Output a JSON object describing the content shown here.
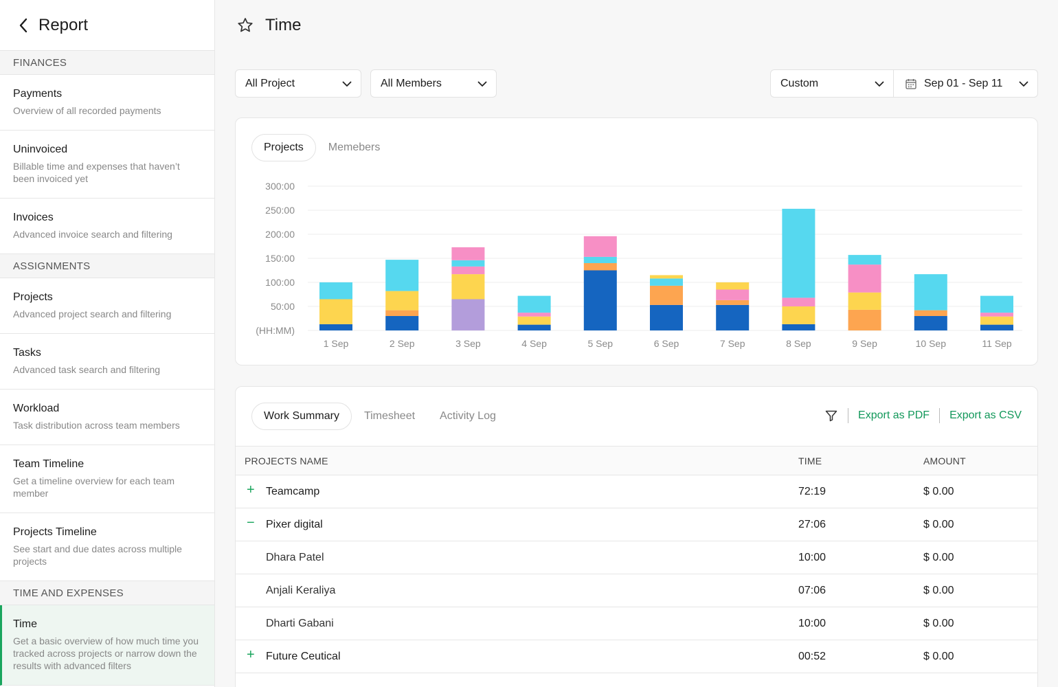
{
  "sidebar": {
    "title": "Report",
    "sections": {
      "finances": "FINANCES",
      "assignments": "ASSIGNMENTS",
      "time_expenses": "TIME AND EXPENSES"
    },
    "items": [
      {
        "name": "Payments",
        "desc": "Overview of all recorded payments"
      },
      {
        "name": "Uninvoiced",
        "desc": "Billable time and expenses that haven’t been invoiced yet"
      },
      {
        "name": "Invoices",
        "desc": "Advanced invoice search and filtering"
      },
      {
        "name": "Projects",
        "desc": "Advanced project search and filtering"
      },
      {
        "name": "Tasks",
        "desc": "Advanced task search and filtering"
      },
      {
        "name": "Workload",
        "desc": "Task distribution across team members"
      },
      {
        "name": "Team Timeline",
        "desc": "Get a timeline overview for each team member"
      },
      {
        "name": "Projects Timeline",
        "desc": "See start and due dates across multiple projects"
      },
      {
        "name": "Time",
        "desc": "Get a basic overview of how much time you tracked across projects or narrow down the results with advanced filters"
      }
    ]
  },
  "header": {
    "title": "Time"
  },
  "filters": {
    "project": "All Project",
    "members": "All Members",
    "range": "Custom",
    "dates": "Sep 01 - Sep 11"
  },
  "chart_tabs": {
    "projects": "Projects",
    "members": "Memebers"
  },
  "chart_data": {
    "type": "bar",
    "stacked": true,
    "categories": [
      "1 Sep",
      "2 Sep",
      "3 Sep",
      "4 Sep",
      "5 Sep",
      "6 Sep",
      "7 Sep",
      "8 Sep",
      "9 Sep",
      "10 Sep",
      "11 Sep"
    ],
    "ylabel": "(HH:MM)",
    "yticks": [
      "(HH:MM)",
      "50:00",
      "100:00",
      "150:00",
      "200:00",
      "250:00",
      "300:00"
    ],
    "ylim": [
      0,
      300
    ],
    "grid": true,
    "series": [
      {
        "color": "#1565c0",
        "values": [
          13,
          30,
          0,
          12,
          125,
          53,
          53,
          13,
          0,
          30,
          12
        ]
      },
      {
        "color": "#b39ddb",
        "values": [
          0,
          0,
          65,
          0,
          0,
          0,
          0,
          0,
          0,
          0,
          0
        ]
      },
      {
        "color": "#fda550",
        "values": [
          0,
          12,
          0,
          0,
          15,
          40,
          10,
          0,
          43,
          12,
          0
        ]
      },
      {
        "color": "#fdd54f",
        "values": [
          52,
          40,
          52,
          17,
          0,
          0,
          0,
          37,
          36,
          0,
          17
        ]
      },
      {
        "color": "#f78fc5",
        "values": [
          0,
          0,
          16,
          8,
          0,
          0,
          22,
          18,
          58,
          0,
          8
        ]
      },
      {
        "color": "#56d8ef",
        "values": [
          35,
          65,
          13,
          35,
          13,
          15,
          0,
          185,
          20,
          75,
          35
        ]
      },
      {
        "color": "#fdd54f",
        "values": [
          0,
          0,
          0,
          0,
          0,
          7,
          15,
          0,
          0,
          0,
          0
        ]
      },
      {
        "color": "#f78fc5",
        "values": [
          0,
          0,
          27,
          0,
          43,
          0,
          0,
          0,
          0,
          0,
          0
        ]
      }
    ]
  },
  "table_tabs": {
    "summary": "Work Summary",
    "timesheet": "Timesheet",
    "activity": "Activity Log"
  },
  "exports": {
    "pdf": "Export as PDF",
    "csv": "Export as CSV"
  },
  "table": {
    "headers": {
      "name": "PROJECTS NAME",
      "time": "TIME",
      "amount": "AMOUNT"
    },
    "rows": [
      {
        "toggle": "+",
        "name": "Teamcamp",
        "time": "72:19",
        "amount": "$ 0.00"
      },
      {
        "toggle": "−",
        "name": "Pixer digital",
        "time": "27:06",
        "amount": "$ 0.00"
      },
      {
        "toggle": "",
        "name": "Dhara Patel",
        "time": "10:00",
        "amount": "$ 0.00"
      },
      {
        "toggle": "",
        "name": "Anjali Keraliya",
        "time": "07:06",
        "amount": "$ 0.00"
      },
      {
        "toggle": "",
        "name": "Dharti Gabani",
        "time": "10:00",
        "amount": "$ 0.00"
      },
      {
        "toggle": "+",
        "name": "Future Ceutical",
        "time": "00:52",
        "amount": "$ 0.00"
      }
    ]
  },
  "colors": {
    "accent": "#1aa55d",
    "export": "#12985a"
  }
}
